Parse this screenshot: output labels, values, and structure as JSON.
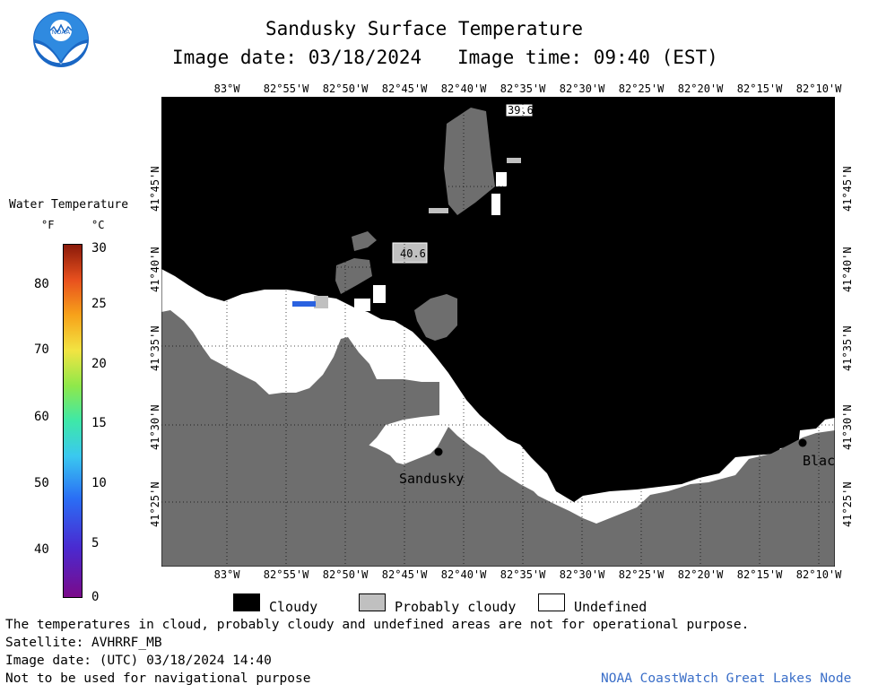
{
  "title": "Sandusky Surface Temperature",
  "image_date_line": "Image date: 03/18/2024",
  "image_time_line": "Image time: 09:40 (EST)",
  "scale": {
    "title": "Water Temperature",
    "unit_f": "°F",
    "unit_c": "°C",
    "f_ticks": [
      "80",
      "70",
      "60",
      "50",
      "40"
    ],
    "c_ticks": [
      "30",
      "25",
      "20",
      "15",
      "10",
      "5",
      "0"
    ]
  },
  "lon_labels": [
    "83°W",
    "82°55'W",
    "82°50'W",
    "82°45'W",
    "82°40'W",
    "82°35'W",
    "82°30'W",
    "82°25'W",
    "82°20'W",
    "82°15'W",
    "82°10'W"
  ],
  "lat_labels": [
    "41°45'N",
    "41°40'N",
    "41°35'N",
    "41°30'N",
    "41°25'N"
  ],
  "map_labels": {
    "temp_1": "39.6",
    "temp_2": "40.6",
    "sandusky": "Sandusky",
    "blac": "Blac"
  },
  "legend": {
    "cloudy": "Cloudy",
    "probably_cloudy": "Probably cloudy",
    "undefined": "Undefined",
    "colors": {
      "cloudy": "#000000",
      "probably_cloudy": "#c0c0c0",
      "undefined": "#ffffff",
      "land": "#6e6e6e"
    }
  },
  "footer": {
    "disclaimer": "The temperatures in cloud, probably cloudy and undefined areas are not for operational purpose.",
    "satellite": "Satellite: AVHRRF_MB",
    "utc_date": "Image date: (UTC) 03/18/2024  14:40",
    "nav": "Not to be used for navigational purpose",
    "credit": "NOAA CoastWatch Great Lakes Node"
  },
  "logo_text": "NOAA"
}
